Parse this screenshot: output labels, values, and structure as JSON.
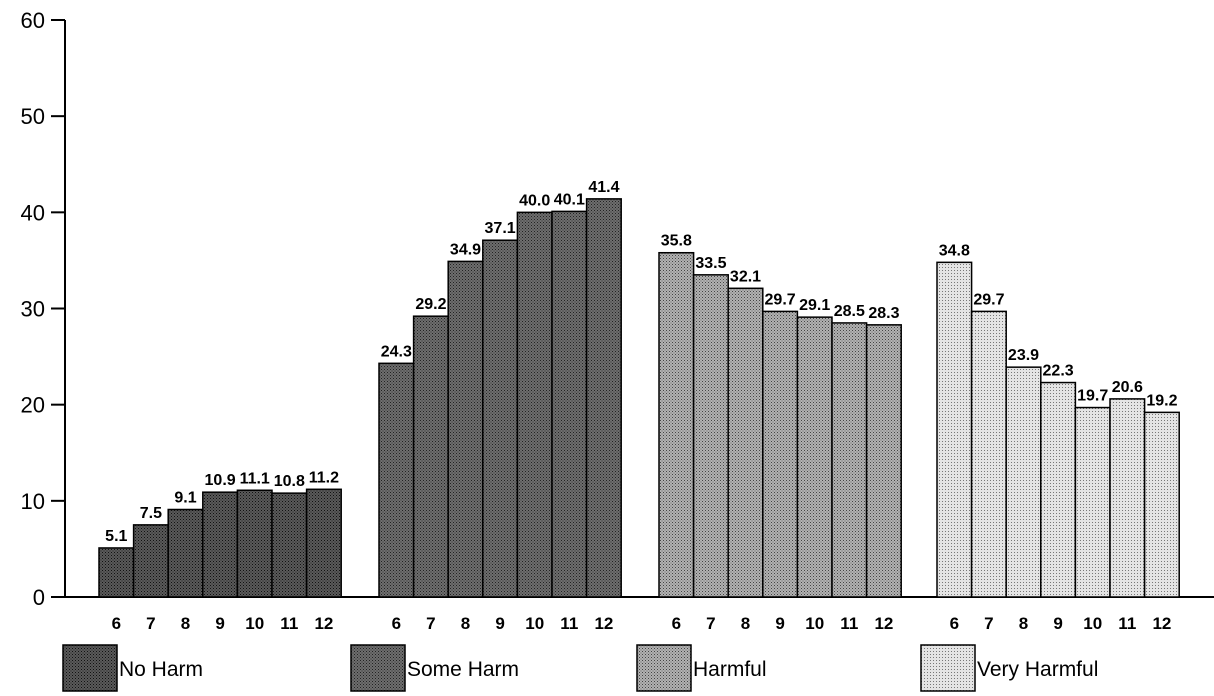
{
  "chart_data": {
    "type": "bar",
    "title": "",
    "xlabel": "",
    "ylabel": "",
    "ylim": [
      0,
      60
    ],
    "yticks": [
      0,
      10,
      20,
      30,
      40,
      50,
      60
    ],
    "categories": [
      "6",
      "7",
      "8",
      "9",
      "10",
      "11",
      "12"
    ],
    "grid": false,
    "legend_position": "bottom",
    "series": [
      {
        "name": "No Harm",
        "color": "#3a3a3a",
        "values": [
          5.1,
          7.5,
          9.1,
          10.9,
          11.1,
          10.8,
          11.2
        ]
      },
      {
        "name": "Some Harm",
        "color": "#525252",
        "values": [
          24.3,
          29.2,
          34.9,
          37.1,
          40.0,
          40.1,
          41.4
        ]
      },
      {
        "name": "Harmful",
        "color": "#9a9a9a",
        "values": [
          35.8,
          33.5,
          32.1,
          29.7,
          29.1,
          28.5,
          28.3
        ]
      },
      {
        "name": "Very Harmful",
        "color": "#d6d6d6",
        "values": [
          34.8,
          29.7,
          23.9,
          22.3,
          19.7,
          20.6,
          19.2
        ]
      }
    ],
    "data_labels": [
      [
        "5.1",
        "7.5",
        "9.1",
        "10.9",
        "11.1",
        "10.8",
        "11.2"
      ],
      [
        "24.3",
        "29.2",
        "34.9",
        "37.1",
        "40.0",
        "40.1",
        "41.4"
      ],
      [
        "35.8",
        "33.5",
        "32.1",
        "29.7",
        "29.1",
        "28.5",
        "28.3"
      ],
      [
        "34.8",
        "29.7",
        "23.9",
        "22.3",
        "19.7",
        "20.6",
        "19.2"
      ]
    ]
  }
}
